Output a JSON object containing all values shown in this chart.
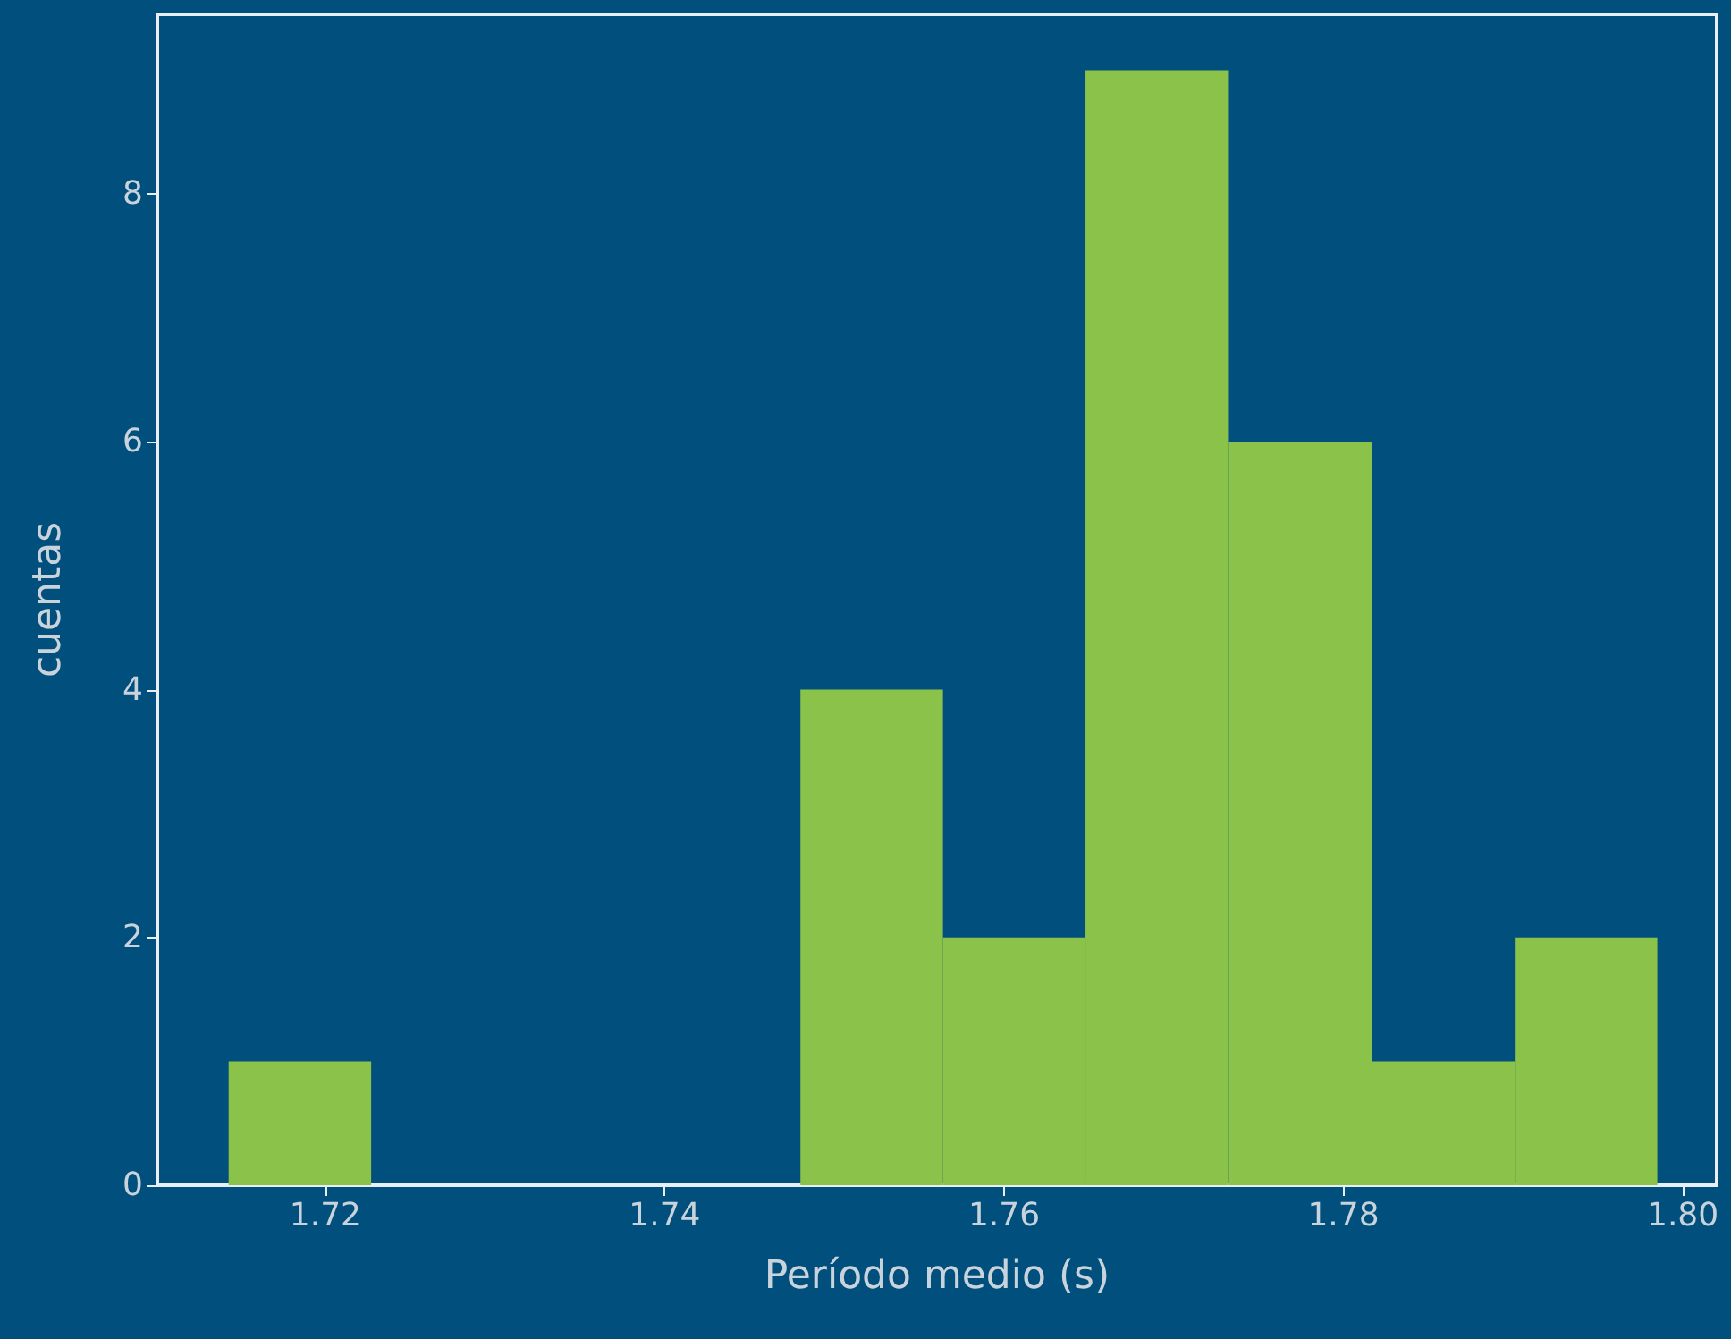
{
  "chart_data": {
    "type": "histogram",
    "xlabel": "Período medio (s)",
    "ylabel": "cuentas",
    "bins": [
      1.7143,
      1.7227,
      1.748,
      1.7564,
      1.7648,
      1.7732,
      1.7817,
      1.7901,
      1.7985
    ],
    "values": [
      1,
      0,
      4,
      2,
      9,
      6,
      1,
      2
    ],
    "color": "#8bc34a",
    "xlim": [
      1.7101,
      1.802
    ],
    "xticks": [
      1.72,
      1.74,
      1.76,
      1.78,
      {
        "value": 1.8,
        "label": "1.80"
      }
    ],
    "ylim": [
      0,
      9.45
    ],
    "yticks": [
      0,
      2,
      4,
      6,
      8
    ],
    "grid": false
  }
}
